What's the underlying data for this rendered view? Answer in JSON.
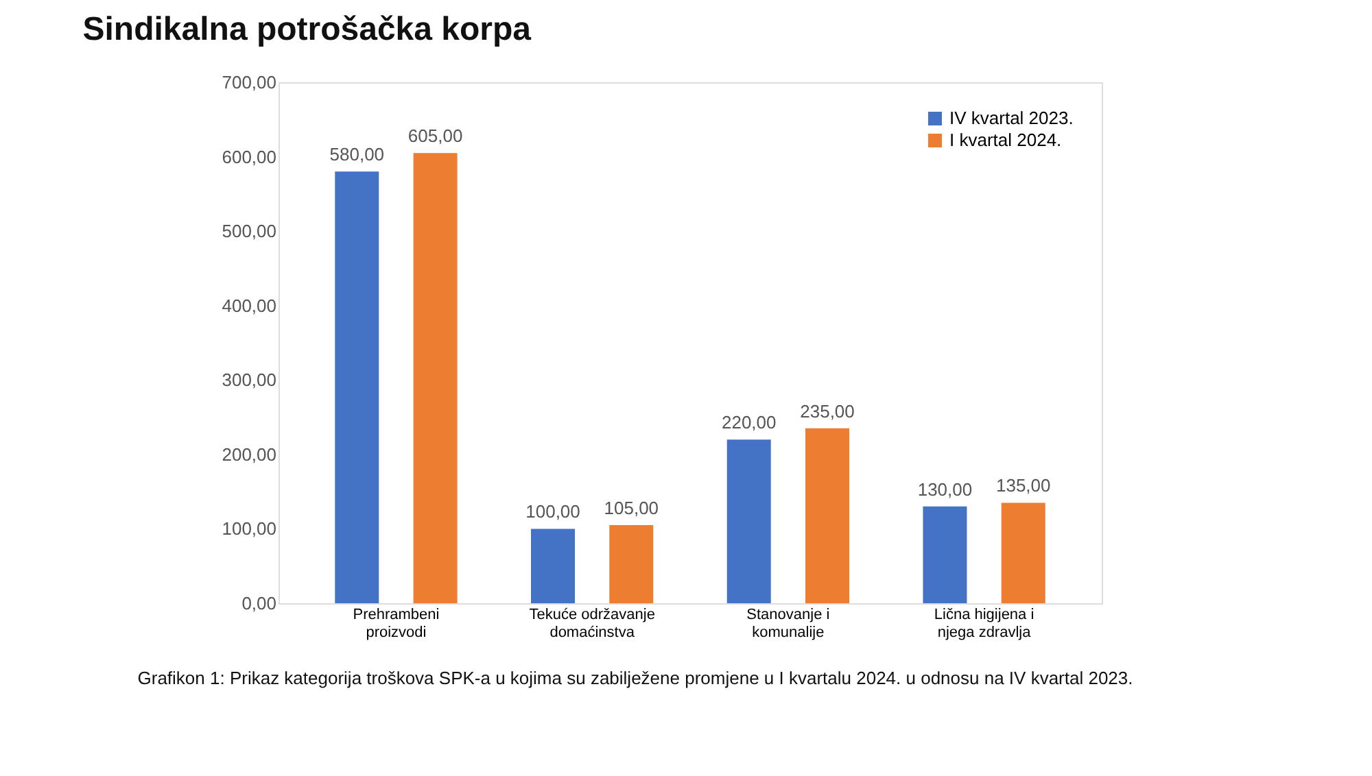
{
  "chart_data": {
    "type": "bar",
    "title": "Sindikalna potrošačka korpa",
    "categories": [
      "Prehrambeni proizvodi",
      "Tekuće održavanje domaćinstva",
      "Stanovanje i komunalije",
      "Lična higijena i njega zdravlja"
    ],
    "series": [
      {
        "name": "IV kvartal 2023.",
        "color": "#4472c4",
        "values": [
          580,
          100,
          220,
          130
        ],
        "value_labels": [
          "580,00",
          "100,00",
          "220,00",
          "130,00"
        ]
      },
      {
        "name": "I kvartal 2024.",
        "color": "#ed7d31",
        "values": [
          605,
          105,
          235,
          135
        ],
        "value_labels": [
          "605,00",
          "105,00",
          "235,00",
          "135,00"
        ]
      }
    ],
    "ylim": [
      0,
      700
    ],
    "yticks": [
      {
        "value": 0,
        "label": "0,00"
      },
      {
        "value": 100,
        "label": "100,00"
      },
      {
        "value": 200,
        "label": "200,00"
      },
      {
        "value": 300,
        "label": "300,00"
      },
      {
        "value": 400,
        "label": "400,00"
      },
      {
        "value": 500,
        "label": "500,00"
      },
      {
        "value": 600,
        "label": "600,00"
      },
      {
        "value": 700,
        "label": "700,00"
      }
    ],
    "grid": false,
    "legend": "top right",
    "annotations": [
      "Grafikon 1: Prikaz kategorija troškova SPK-a u kojima su zabilježene promjene u I kvartalu 2024. u odnosu na IV kvartal 2023."
    ]
  }
}
